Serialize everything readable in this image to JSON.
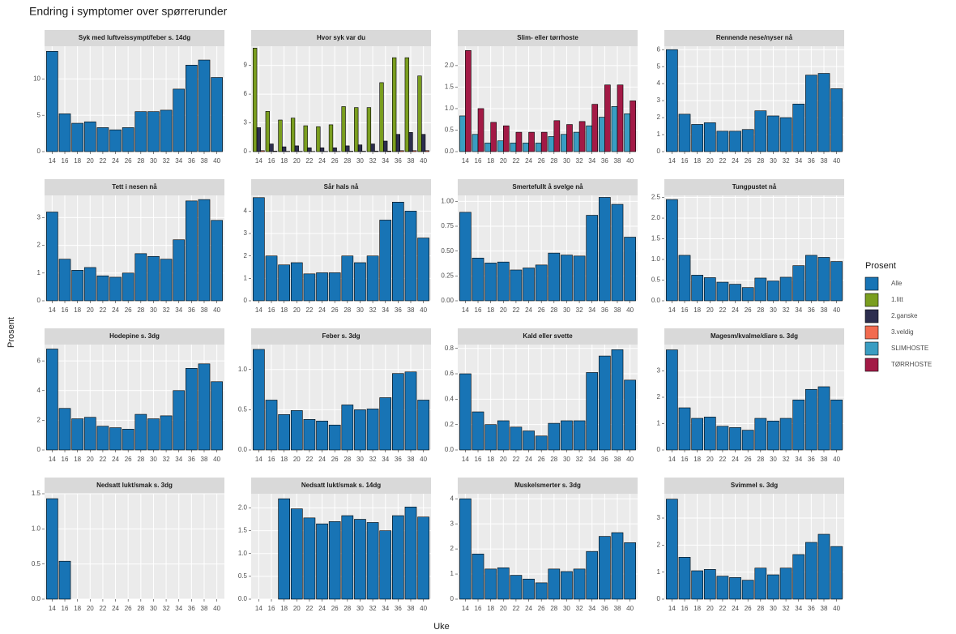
{
  "title": "Endring i symptomer over spørrerunder",
  "x_label": "Uke",
  "y_label": "Prosent",
  "legend": {
    "title": "Prosent",
    "items": [
      {
        "name": "Alle",
        "color": "#1874b5"
      },
      {
        "name": "1.litt",
        "color": "#7a9e1f"
      },
      {
        "name": "2.ganske",
        "color": "#2c2d4e"
      },
      {
        "name": "3.veldig",
        "color": "#f26b4f"
      },
      {
        "name": "SLIMHOSTE",
        "color": "#3a9dc2"
      },
      {
        "name": "TØRRHOSTE",
        "color": "#a31a46"
      }
    ]
  },
  "chart_data": [
    {
      "type": "bar",
      "title": "Syk med luftveissympt/feber s. 14dg",
      "categories": [
        "14",
        "16",
        "18",
        "20",
        "22",
        "24",
        "26",
        "28",
        "30",
        "32",
        "34",
        "36",
        "38",
        "40"
      ],
      "color": "#1874b5",
      "values": [
        13.8,
        5.2,
        3.9,
        4.1,
        3.3,
        3.0,
        3.3,
        5.5,
        5.5,
        5.7,
        8.6,
        11.9,
        12.6,
        10.2
      ],
      "ylim": [
        0,
        14.5
      ],
      "yticks": [
        0,
        5,
        10
      ]
    },
    {
      "type": "bar",
      "title": "Hvor syk var du",
      "categories": [
        "14",
        "16",
        "18",
        "20",
        "22",
        "24",
        "26",
        "28",
        "30",
        "32",
        "34",
        "36",
        "38",
        "40"
      ],
      "series": [
        {
          "name": "1.litt",
          "color": "#7a9e1f",
          "values": [
            10.8,
            4.2,
            3.3,
            3.5,
            2.7,
            2.6,
            2.8,
            4.7,
            4.6,
            4.6,
            7.2,
            9.8,
            9.8,
            7.9
          ]
        },
        {
          "name": "2.ganske",
          "color": "#2c2d4e",
          "values": [
            2.5,
            0.8,
            0.5,
            0.6,
            0.4,
            0.4,
            0.4,
            0.6,
            0.7,
            0.8,
            1.1,
            1.8,
            2.0,
            1.8
          ]
        },
        {
          "name": "3.veldig",
          "color": "#f26b4f",
          "values": [
            0.1,
            0.05,
            0.03,
            0.03,
            0.02,
            0.02,
            0.02,
            0.04,
            0.04,
            0.05,
            0.06,
            0.1,
            0.1,
            0.1
          ]
        }
      ],
      "ylim": [
        0,
        11
      ],
      "yticks": [
        0,
        3,
        6,
        9
      ]
    },
    {
      "type": "bar",
      "title": "Slim- eller tørrhoste",
      "categories": [
        "14",
        "16",
        "18",
        "20",
        "22",
        "24",
        "26",
        "28",
        "30",
        "32",
        "34",
        "36",
        "38",
        "40"
      ],
      "series": [
        {
          "name": "SLIMHOSTE",
          "color": "#3a9dc2",
          "values": [
            0.83,
            0.4,
            0.2,
            0.25,
            0.2,
            0.2,
            0.2,
            0.35,
            0.4,
            0.45,
            0.6,
            0.8,
            1.05,
            0.88
          ]
        },
        {
          "name": "TØRRHOSTE",
          "color": "#a31a46",
          "values": [
            2.35,
            1.0,
            0.68,
            0.6,
            0.45,
            0.45,
            0.45,
            0.72,
            0.63,
            0.7,
            1.1,
            1.55,
            1.55,
            1.18
          ]
        }
      ],
      "ylim": [
        0,
        2.45
      ],
      "yticks": [
        {
          "value": 0,
          "label": "0.0"
        },
        {
          "value": 0.5,
          "label": "0.5"
        },
        {
          "value": 1,
          "label": "1.0"
        },
        {
          "value": 1.5,
          "label": "1.5"
        },
        {
          "value": 2,
          "label": "2.0"
        }
      ]
    },
    {
      "type": "bar",
      "title": "Rennende nese/nyser nå",
      "categories": [
        "14",
        "16",
        "18",
        "20",
        "22",
        "24",
        "26",
        "28",
        "30",
        "32",
        "34",
        "36",
        "38",
        "40"
      ],
      "color": "#1874b5",
      "values": [
        6.0,
        2.2,
        1.6,
        1.7,
        1.2,
        1.2,
        1.3,
        2.4,
        2.1,
        2.0,
        2.8,
        4.5,
        4.6,
        3.7
      ],
      "ylim": [
        0,
        6.2
      ],
      "yticks": [
        0,
        1,
        2,
        3,
        4,
        5,
        6
      ]
    },
    {
      "type": "bar",
      "title": "Tett i nesen nå",
      "categories": [
        "14",
        "16",
        "18",
        "20",
        "22",
        "24",
        "26",
        "28",
        "30",
        "32",
        "34",
        "36",
        "38",
        "40"
      ],
      "color": "#1874b5",
      "values": [
        3.2,
        1.5,
        1.1,
        1.2,
        0.9,
        0.85,
        1.0,
        1.7,
        1.6,
        1.5,
        2.2,
        3.6,
        3.65,
        2.9
      ],
      "ylim": [
        0,
        3.8
      ],
      "yticks": [
        0,
        1,
        2,
        3
      ]
    },
    {
      "type": "bar",
      "title": "Sår hals nå",
      "categories": [
        "14",
        "16",
        "18",
        "20",
        "22",
        "24",
        "26",
        "28",
        "30",
        "32",
        "34",
        "36",
        "38",
        "40"
      ],
      "color": "#1874b5",
      "values": [
        4.6,
        2.0,
        1.6,
        1.7,
        1.2,
        1.25,
        1.25,
        2.0,
        1.7,
        2.0,
        3.6,
        4.4,
        4.0,
        2.8
      ],
      "ylim": [
        0,
        4.7
      ],
      "yticks": [
        0,
        1,
        2,
        3,
        4
      ]
    },
    {
      "type": "bar",
      "title": "Smertefullt å svelge nå",
      "categories": [
        "14",
        "16",
        "18",
        "20",
        "22",
        "24",
        "26",
        "28",
        "30",
        "32",
        "34",
        "36",
        "38",
        "40"
      ],
      "color": "#1874b5",
      "values": [
        0.89,
        0.43,
        0.38,
        0.39,
        0.31,
        0.33,
        0.36,
        0.48,
        0.46,
        0.45,
        0.86,
        1.04,
        0.97,
        0.64
      ],
      "ylim": [
        0,
        1.06
      ],
      "yticks": [
        {
          "value": 0,
          "label": "0.00"
        },
        {
          "value": 0.25,
          "label": "0.25"
        },
        {
          "value": 0.5,
          "label": "0.50"
        },
        {
          "value": 0.75,
          "label": "0.75"
        },
        {
          "value": 1,
          "label": "1.00"
        }
      ]
    },
    {
      "type": "bar",
      "title": "Tungpustet nå",
      "categories": [
        "14",
        "16",
        "18",
        "20",
        "22",
        "24",
        "26",
        "28",
        "30",
        "32",
        "34",
        "36",
        "38",
        "40"
      ],
      "color": "#1874b5",
      "values": [
        2.45,
        1.1,
        0.62,
        0.56,
        0.45,
        0.4,
        0.32,
        0.55,
        0.48,
        0.57,
        0.85,
        1.1,
        1.05,
        0.95
      ],
      "ylim": [
        0,
        2.55
      ],
      "yticks": [
        {
          "value": 0,
          "label": "0.0"
        },
        {
          "value": 0.5,
          "label": "0.5"
        },
        {
          "value": 1,
          "label": "1.0"
        },
        {
          "value": 1.5,
          "label": "1.5"
        },
        {
          "value": 2,
          "label": "2.0"
        },
        {
          "value": 2.5,
          "label": "2.5"
        }
      ]
    },
    {
      "type": "bar",
      "title": "Hodepine s. 3dg",
      "categories": [
        "14",
        "16",
        "18",
        "20",
        "22",
        "24",
        "26",
        "28",
        "30",
        "32",
        "34",
        "36",
        "38",
        "40"
      ],
      "color": "#1874b5",
      "values": [
        6.8,
        2.8,
        2.1,
        2.2,
        1.6,
        1.5,
        1.4,
        2.4,
        2.1,
        2.3,
        4.0,
        5.5,
        5.8,
        4.6
      ],
      "ylim": [
        0,
        7.1
      ],
      "yticks": [
        0,
        2,
        4,
        6
      ]
    },
    {
      "type": "bar",
      "title": "Feber s. 3dg",
      "categories": [
        "14",
        "16",
        "18",
        "20",
        "22",
        "24",
        "26",
        "28",
        "30",
        "32",
        "34",
        "36",
        "38",
        "40"
      ],
      "color": "#1874b5",
      "values": [
        1.25,
        0.62,
        0.44,
        0.49,
        0.38,
        0.36,
        0.31,
        0.56,
        0.5,
        0.51,
        0.65,
        0.95,
        0.97,
        0.62
      ],
      "ylim": [
        0,
        1.31
      ],
      "yticks": [
        {
          "value": 0,
          "label": "0.0"
        },
        {
          "value": 0.5,
          "label": "0.5"
        },
        {
          "value": 1,
          "label": "1.0"
        }
      ]
    },
    {
      "type": "bar",
      "title": "Kald eller svette",
      "categories": [
        "14",
        "16",
        "18",
        "20",
        "22",
        "24",
        "26",
        "28",
        "30",
        "32",
        "34",
        "36",
        "38",
        "40"
      ],
      "color": "#1874b5",
      "values": [
        0.6,
        0.3,
        0.2,
        0.23,
        0.18,
        0.15,
        0.11,
        0.21,
        0.23,
        0.23,
        0.61,
        0.74,
        0.79,
        0.55
      ],
      "ylim": [
        0,
        0.83
      ],
      "yticks": [
        {
          "value": 0,
          "label": "0.0"
        },
        {
          "value": 0.2,
          "label": "0.2"
        },
        {
          "value": 0.4,
          "label": "0.4"
        },
        {
          "value": 0.6,
          "label": "0.6"
        },
        {
          "value": 0.8,
          "label": "0.8"
        }
      ]
    },
    {
      "type": "bar",
      "title": "Magesm/kvalme/diare s. 3dg",
      "categories": [
        "14",
        "16",
        "18",
        "20",
        "22",
        "24",
        "26",
        "28",
        "30",
        "32",
        "34",
        "36",
        "38",
        "40"
      ],
      "color": "#1874b5",
      "values": [
        3.8,
        1.6,
        1.2,
        1.25,
        0.9,
        0.85,
        0.75,
        1.2,
        1.1,
        1.2,
        1.9,
        2.3,
        2.4,
        1.9
      ],
      "ylim": [
        0,
        4.0
      ],
      "yticks": [
        0,
        1,
        2,
        3
      ]
    },
    {
      "type": "bar",
      "title": "Nedsatt lukt/smak s. 3dg",
      "categories": [
        "14",
        "16",
        "18",
        "20",
        "22",
        "24",
        "26",
        "28",
        "30",
        "32",
        "34",
        "36",
        "38",
        "40"
      ],
      "color": "#1874b5",
      "values": [
        1.43,
        0.54,
        0,
        0,
        0,
        0,
        0,
        0,
        0,
        0,
        0,
        0,
        0,
        0
      ],
      "ylim": [
        0,
        1.5
      ],
      "yticks": [
        {
          "value": 0,
          "label": "0.0"
        },
        {
          "value": 0.5,
          "label": "0.5"
        },
        {
          "value": 1,
          "label": "1.0"
        },
        {
          "value": 1.5,
          "label": "1.5"
        }
      ]
    },
    {
      "type": "bar",
      "title": "Nedsatt lukt/smak s. 14dg",
      "categories": [
        "14",
        "16",
        "18",
        "20",
        "22",
        "24",
        "26",
        "28",
        "30",
        "32",
        "34",
        "36",
        "38",
        "40"
      ],
      "color": "#1874b5",
      "values": [
        0,
        0,
        2.2,
        1.98,
        1.78,
        1.65,
        1.7,
        1.83,
        1.75,
        1.68,
        1.5,
        1.83,
        2.02,
        1.8
      ],
      "ylim": [
        0,
        2.31
      ],
      "yticks": [
        {
          "value": 0,
          "label": "0.0"
        },
        {
          "value": 0.5,
          "label": "0.5"
        },
        {
          "value": 1,
          "label": "1.0"
        },
        {
          "value": 1.5,
          "label": "1.5"
        },
        {
          "value": 2,
          "label": "2.0"
        }
      ]
    },
    {
      "type": "bar",
      "title": "Muskelsmerter s. 3dg",
      "categories": [
        "14",
        "16",
        "18",
        "20",
        "22",
        "24",
        "26",
        "28",
        "30",
        "32",
        "34",
        "36",
        "38",
        "40"
      ],
      "color": "#1874b5",
      "values": [
        4.0,
        1.8,
        1.2,
        1.25,
        0.95,
        0.8,
        0.65,
        1.2,
        1.1,
        1.2,
        1.9,
        2.5,
        2.65,
        2.25
      ],
      "ylim": [
        0,
        4.2
      ],
      "yticks": [
        0,
        1,
        2,
        3,
        4
      ]
    },
    {
      "type": "bar",
      "title": "Svimmel s. 3dg",
      "categories": [
        "14",
        "16",
        "18",
        "20",
        "22",
        "24",
        "26",
        "28",
        "30",
        "32",
        "34",
        "36",
        "38",
        "40"
      ],
      "color": "#1874b5",
      "values": [
        3.7,
        1.55,
        1.05,
        1.1,
        0.85,
        0.8,
        0.7,
        1.15,
        0.9,
        1.15,
        1.65,
        2.1,
        2.4,
        1.95
      ],
      "ylim": [
        0,
        3.9
      ],
      "yticks": [
        0,
        1,
        2,
        3
      ]
    }
  ]
}
